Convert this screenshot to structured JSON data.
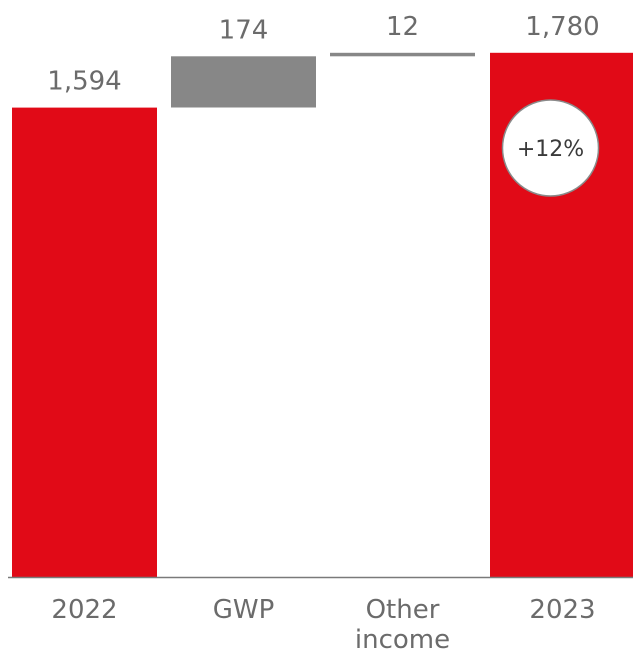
{
  "chart_data": {
    "type": "waterfall",
    "unit": "",
    "bars": [
      {
        "category": "2022",
        "kind": "total",
        "value": 1594,
        "label": "1,594"
      },
      {
        "category": "GWP",
        "kind": "delta",
        "value": 174,
        "label": "174"
      },
      {
        "category": "Other income",
        "kind": "delta",
        "value": 12,
        "label": "12"
      },
      {
        "category": "2023",
        "kind": "total",
        "value": 1780,
        "label": "1,780"
      }
    ],
    "category_lines": [
      [
        "2022"
      ],
      [
        "GWP"
      ],
      [
        "Other",
        "income"
      ],
      [
        "2023"
      ]
    ],
    "badge": {
      "text": "+12%",
      "attached_to": "2023"
    },
    "colors": {
      "total": "#e10a17",
      "delta": "#878787",
      "text": "#6b6b6b",
      "axis": "#7a7a7a",
      "badge_border": "#8a8a8a"
    }
  }
}
